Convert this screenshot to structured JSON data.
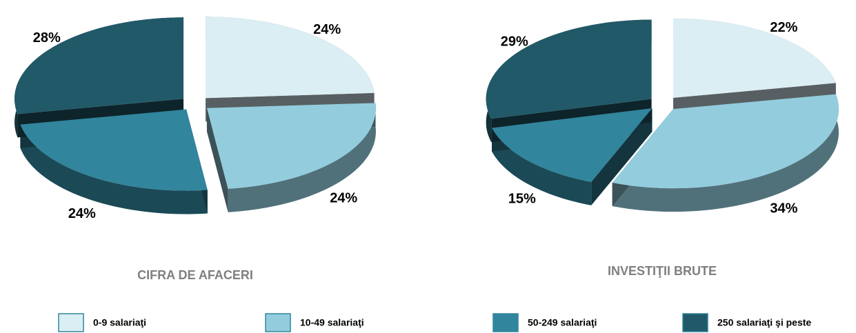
{
  "chart_data": [
    {
      "type": "pie",
      "title": "CIFRA DE AFACERI",
      "values": [
        24,
        24,
        24,
        28
      ],
      "value_labels": [
        "24%",
        "24%",
        "24%",
        "28%"
      ]
    },
    {
      "type": "pie",
      "title": "INVESTIŢII BRUTE",
      "values": [
        22,
        34,
        15,
        29
      ],
      "value_labels": [
        "22%",
        "34%",
        "15%",
        "29%"
      ]
    }
  ],
  "legend": {
    "names": [
      "0-9 salariaţi",
      "10-49 salariaţi",
      "50-249 salariaţi",
      "250 salariaţi şi peste"
    ],
    "colors": [
      "#dbeef4",
      "#93cddd",
      "#31859c",
      "#215968"
    ]
  }
}
